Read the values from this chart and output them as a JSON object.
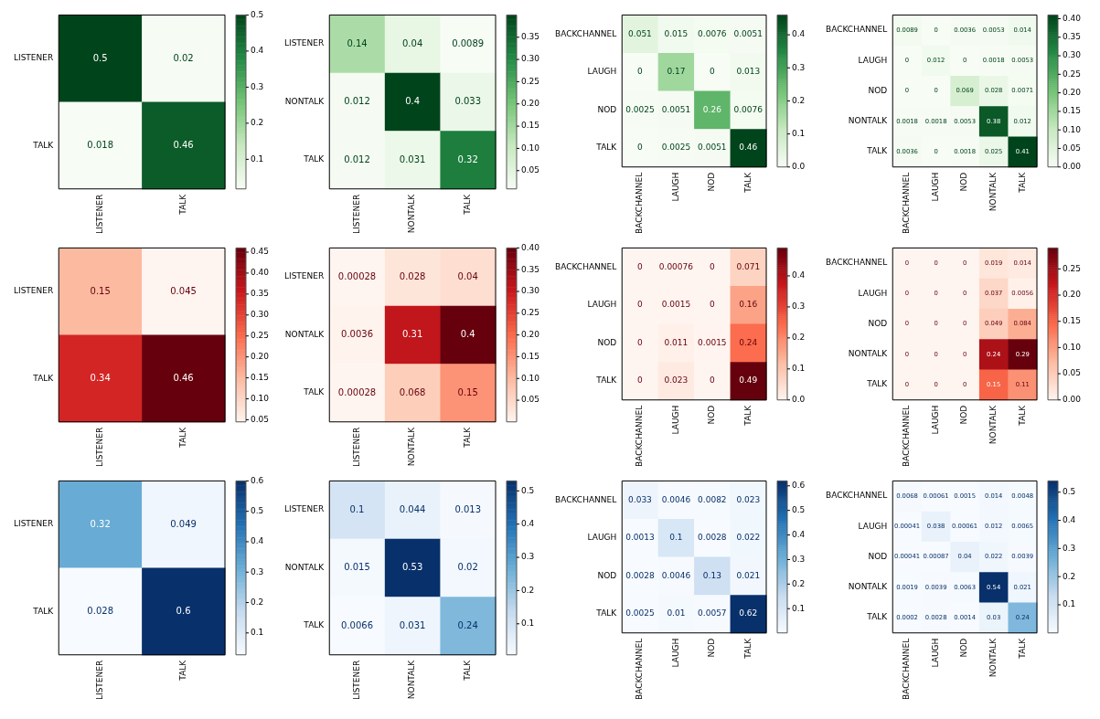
{
  "chart_data": [
    {
      "type": "heatmap",
      "categories": [
        "LISTENER",
        "TALK"
      ],
      "y_categories": [
        "LISTENER",
        "TALK"
      ],
      "cells": [
        [
          0.5,
          0.02
        ],
        [
          0.018,
          0.46
        ]
      ],
      "clim": [
        0.018,
        0.5
      ],
      "cticks": [
        0.1,
        0.2,
        0.3,
        0.4,
        0.5
      ],
      "colors": [
        "#f7fcf5",
        "#c7e9c0",
        "#74c476",
        "#238b45",
        "#00441b"
      ],
      "data_labels": true
    },
    {
      "type": "heatmap",
      "categories": [
        "LISTENER",
        "NONTALK",
        "TALK"
      ],
      "y_categories": [
        "LISTENER",
        "NONTALK",
        "TALK"
      ],
      "cells": [
        [
          0.14,
          0.04,
          0.0089
        ],
        [
          0.012,
          0.4,
          0.033
        ],
        [
          0.012,
          0.031,
          0.32
        ]
      ],
      "clim": [
        0.0089,
        0.4
      ],
      "cticks": [
        0.05,
        {
          "value": 0.1,
          "label": "0.10"
        },
        0.15,
        {
          "value": 0.2,
          "label": "0.20"
        },
        0.25,
        {
          "value": 0.3,
          "label": "0.30"
        },
        0.35
      ],
      "colors": [
        "#f7fcf5",
        "#c7e9c0",
        "#74c476",
        "#238b45",
        "#00441b"
      ],
      "data_labels": true
    },
    {
      "type": "heatmap",
      "categories": [
        "BACKCHANNEL",
        "LAUGH",
        "NOD",
        "TALK"
      ],
      "y_categories": [
        "BACKCHANNEL",
        "LAUGH",
        "NOD",
        "TALK"
      ],
      "cells": [
        [
          0.051,
          0.015,
          0.0076,
          0.0051
        ],
        [
          0,
          0.17,
          0,
          0.013
        ],
        [
          0.0025,
          0.0051,
          0.26,
          0.0076
        ],
        [
          0,
          0.0025,
          0.0051,
          0.46
        ]
      ],
      "clim": [
        0,
        0.46
      ],
      "cticks": [
        {
          "value": 0,
          "label": "0.0"
        },
        0.1,
        0.2,
        0.3,
        0.4
      ],
      "colors": [
        "#f7fcf5",
        "#c7e9c0",
        "#74c476",
        "#238b45",
        "#00441b"
      ],
      "data_labels": true
    },
    {
      "type": "heatmap",
      "categories": [
        "BACKCHANNEL",
        "LAUGH",
        "NOD",
        "NONTALK",
        "TALK"
      ],
      "y_categories": [
        "BACKCHANNEL",
        "LAUGH",
        "NOD",
        "NONTALK",
        "TALK"
      ],
      "cells": [
        [
          0.0089,
          0,
          0.0036,
          0.0053,
          0.014
        ],
        [
          0,
          0.012,
          0,
          0.0018,
          0.0053
        ],
        [
          0,
          0,
          0.069,
          0.028,
          0.0071
        ],
        [
          0.0018,
          0.0018,
          0.0053,
          0.38,
          0.012
        ],
        [
          0.0036,
          0,
          0.0018,
          0.025,
          0.41
        ]
      ],
      "clim": [
        0,
        0.41
      ],
      "cticks": [
        {
          "value": 0,
          "label": "0.00"
        },
        0.05,
        {
          "value": 0.1,
          "label": "0.10"
        },
        0.15,
        {
          "value": 0.2,
          "label": "0.20"
        },
        0.25,
        {
          "value": 0.3,
          "label": "0.30"
        },
        0.35,
        {
          "value": 0.4,
          "label": "0.40"
        }
      ],
      "colors": [
        "#f7fcf5",
        "#c7e9c0",
        "#74c476",
        "#238b45",
        "#00441b"
      ],
      "data_labels": true
    },
    {
      "type": "heatmap",
      "categories": [
        "LISTENER",
        "TALK"
      ],
      "y_categories": [
        "LISTENER",
        "TALK"
      ],
      "cells": [
        [
          0.15,
          0.045
        ],
        [
          0.34,
          0.46
        ]
      ],
      "clim": [
        0.045,
        0.46
      ],
      "cticks": [
        0.05,
        {
          "value": 0.1,
          "label": "0.10"
        },
        0.15,
        {
          "value": 0.2,
          "label": "0.20"
        },
        0.25,
        {
          "value": 0.3,
          "label": "0.30"
        },
        0.35,
        {
          "value": 0.4,
          "label": "0.40"
        },
        0.45
      ],
      "colors": [
        "#fff5f0",
        "#fcbba1",
        "#fb6a4a",
        "#cb181d",
        "#67000d"
      ],
      "data_labels": true
    },
    {
      "type": "heatmap",
      "categories": [
        "LISTENER",
        "NONTALK",
        "TALK"
      ],
      "y_categories": [
        "LISTENER",
        "NONTALK",
        "TALK"
      ],
      "cells": [
        [
          0.00028,
          0.028,
          0.04
        ],
        [
          0.0036,
          0.31,
          0.4
        ],
        [
          0.00028,
          0.068,
          0.15
        ]
      ],
      "clim": [
        0.00028,
        0.4
      ],
      "cticks": [
        0.05,
        {
          "value": 0.1,
          "label": "0.10"
        },
        0.15,
        {
          "value": 0.2,
          "label": "0.20"
        },
        0.25,
        {
          "value": 0.3,
          "label": "0.30"
        },
        0.35,
        {
          "value": 0.4,
          "label": "0.40"
        }
      ],
      "colors": [
        "#fff5f0",
        "#fcbba1",
        "#fb6a4a",
        "#cb181d",
        "#67000d"
      ],
      "data_labels": true
    },
    {
      "type": "heatmap",
      "categories": [
        "BACKCHANNEL",
        "LAUGH",
        "NOD",
        "TALK"
      ],
      "y_categories": [
        "BACKCHANNEL",
        "LAUGH",
        "NOD",
        "TALK"
      ],
      "cells": [
        [
          0,
          0.00076,
          0,
          0.071
        ],
        [
          0,
          0.0015,
          0,
          0.16
        ],
        [
          0,
          0.011,
          0.0015,
          0.24
        ],
        [
          0,
          0.023,
          0,
          0.49
        ]
      ],
      "clim": [
        0,
        0.49
      ],
      "cticks": [
        {
          "value": 0,
          "label": "0.0"
        },
        0.1,
        0.2,
        0.3,
        0.4
      ],
      "colors": [
        "#fff5f0",
        "#fcbba1",
        "#fb6a4a",
        "#cb181d",
        "#67000d"
      ],
      "data_labels": true
    },
    {
      "type": "heatmap",
      "categories": [
        "BACKCHANNEL",
        "LAUGH",
        "NOD",
        "NONTALK",
        "TALK"
      ],
      "y_categories": [
        "BACKCHANNEL",
        "LAUGH",
        "NOD",
        "NONTALK",
        "TALK"
      ],
      "cells": [
        [
          0,
          0,
          0,
          0.019,
          0.014
        ],
        [
          0,
          0,
          0,
          0.037,
          0.0056
        ],
        [
          0,
          0,
          0,
          0.049,
          0.084
        ],
        [
          0,
          0,
          0,
          0.24,
          0.29
        ],
        [
          0,
          0,
          0,
          0.15,
          0.11
        ]
      ],
      "clim": [
        0,
        0.29
      ],
      "cticks": [
        {
          "value": 0,
          "label": "0.00"
        },
        0.05,
        {
          "value": 0.1,
          "label": "0.10"
        },
        0.15,
        {
          "value": 0.2,
          "label": "0.20"
        },
        0.25
      ],
      "colors": [
        "#fff5f0",
        "#fcbba1",
        "#fb6a4a",
        "#cb181d",
        "#67000d"
      ],
      "data_labels": true
    },
    {
      "type": "heatmap",
      "categories": [
        "LISTENER",
        "TALK"
      ],
      "y_categories": [
        "LISTENER",
        "TALK"
      ],
      "cells": [
        [
          0.32,
          0.049
        ],
        [
          0.028,
          0.6
        ]
      ],
      "clim": [
        0.028,
        0.6
      ],
      "cticks": [
        0.1,
        0.2,
        0.3,
        0.4,
        0.5,
        0.6
      ],
      "colors": [
        "#f7fbff",
        "#c6dbef",
        "#6baed6",
        "#2171b5",
        "#08306b"
      ],
      "data_labels": true
    },
    {
      "type": "heatmap",
      "categories": [
        "LISTENER",
        "NONTALK",
        "TALK"
      ],
      "y_categories": [
        "LISTENER",
        "NONTALK",
        "TALK"
      ],
      "cells": [
        [
          0.1,
          0.044,
          0.013
        ],
        [
          0.015,
          0.53,
          0.02
        ],
        [
          0.0066,
          0.031,
          0.24
        ]
      ],
      "clim": [
        0.0066,
        0.53
      ],
      "cticks": [
        0.1,
        0.2,
        0.3,
        0.4,
        0.5
      ],
      "colors": [
        "#f7fbff",
        "#c6dbef",
        "#6baed6",
        "#2171b5",
        "#08306b"
      ],
      "data_labels": true
    },
    {
      "type": "heatmap",
      "categories": [
        "BACKCHANNEL",
        "LAUGH",
        "NOD",
        "TALK"
      ],
      "y_categories": [
        "BACKCHANNEL",
        "LAUGH",
        "NOD",
        "TALK"
      ],
      "cells": [
        [
          0.033,
          0.0046,
          0.0082,
          0.023
        ],
        [
          0.0013,
          0.1,
          0.0028,
          0.022
        ],
        [
          0.0028,
          0.0046,
          0.13,
          0.021
        ],
        [
          0.0025,
          0.01,
          0.0057,
          0.62
        ]
      ],
      "clim": [
        0.0013,
        0.62
      ],
      "cticks": [
        0.1,
        0.2,
        0.3,
        0.4,
        0.5,
        0.6
      ],
      "colors": [
        "#f7fbff",
        "#c6dbef",
        "#6baed6",
        "#2171b5",
        "#08306b"
      ],
      "data_labels": true
    },
    {
      "type": "heatmap",
      "categories": [
        "BACKCHANNEL",
        "LAUGH",
        "NOD",
        "NONTALK",
        "TALK"
      ],
      "y_categories": [
        "BACKCHANNEL",
        "LAUGH",
        "NOD",
        "NONTALK",
        "TALK"
      ],
      "cells": [
        [
          0.0068,
          0.00061,
          0.0015,
          0.014,
          0.0048
        ],
        [
          0.00041,
          0.038,
          0.00061,
          0.012,
          0.0065
        ],
        [
          0.00041,
          0.00087,
          0.04,
          0.022,
          0.0039
        ],
        [
          0.0019,
          0.0039,
          0.0063,
          0.54,
          0.021
        ],
        [
          0.0002,
          0.0028,
          0.0014,
          0.03,
          0.24
        ]
      ],
      "clim": [
        0.0002,
        0.54
      ],
      "cticks": [
        0.1,
        0.2,
        0.3,
        0.4,
        0.5
      ],
      "colors": [
        "#f7fbff",
        "#c6dbef",
        "#6baed6",
        "#2171b5",
        "#08306b"
      ],
      "data_labels": true
    }
  ]
}
